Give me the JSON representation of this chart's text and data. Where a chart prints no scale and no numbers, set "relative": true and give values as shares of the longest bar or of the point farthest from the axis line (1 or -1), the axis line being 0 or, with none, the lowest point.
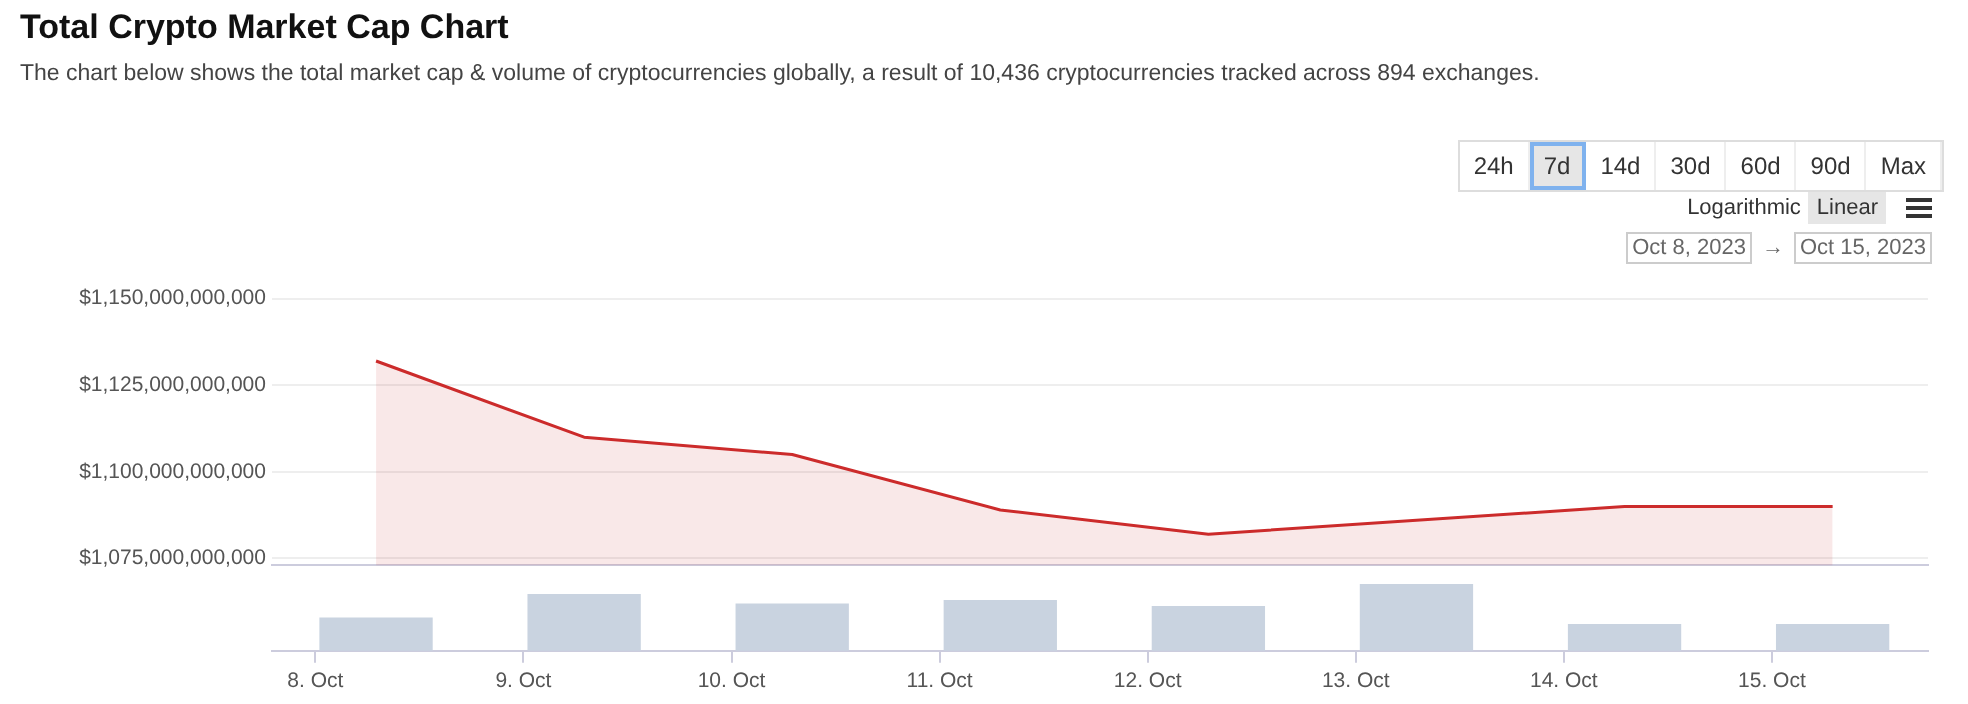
{
  "chart_data": [
    {
      "type": "area",
      "title": "Total Crypto Market Cap Chart",
      "subtitle": "The chart below shows the total market cap & volume of cryptocurrencies globally, a result of 10,436 cryptocurrencies tracked across 894 exchanges.",
      "annotations": [
        "24h",
        "7d",
        "14d",
        "30d",
        "60d",
        "90d",
        "Max",
        "Logarithmic",
        "Linear",
        "Oct 8, 2023",
        "→",
        "Oct 15, 2023"
      ],
      "x": [
        "2023-10-08T07:00",
        "2023-10-09T07:00",
        "2023-10-10T07:00",
        "2023-10-11T07:00",
        "2023-10-12T07:00",
        "2023-10-13T07:00",
        "2023-10-14T07:00",
        "2023-10-15T07:00"
      ],
      "series": [
        {
          "color": "#cc2b2b",
          "values": [
            1132000000000,
            1110000000000,
            1105000000000,
            1089000000000,
            1082000000000,
            1086000000000,
            1090000000000,
            1090000000000
          ]
        }
      ],
      "xlim": [
        "2023-10-07T19:00",
        "2023-10-15T18:00"
      ],
      "ylim": [
        1073000000000,
        1150000000000
      ],
      "yticks": [
        {
          "value": 1075000000000,
          "label": "$1,075,000,000,000"
        },
        {
          "value": 1100000000000,
          "label": "$1,100,000,000,000"
        },
        {
          "value": 1125000000000,
          "label": "$1,125,000,000,000"
        },
        {
          "value": 1150000000000,
          "label": "$1,150,000,000,000"
        }
      ],
      "tick_labels": "y",
      "grid": "y",
      "legend": false,
      "marker": "none"
    },
    {
      "type": "bar",
      "relative": true,
      "x": [
        "2023-10-08T07:00",
        "2023-10-09T07:00",
        "2023-10-10T07:00",
        "2023-10-11T07:00",
        "2023-10-12T07:00",
        "2023-10-13T07:00",
        "2023-10-14T07:00",
        "2023-10-15T07:00"
      ],
      "series": [
        {
          "color": "#c9d3e0",
          "values": [
            0.49,
            0.84,
            0.7,
            0.75,
            0.66,
            1,
            0.39,
            0.39
          ]
        }
      ],
      "xlim": [
        "2023-10-07T19:00",
        "2023-10-15T18:00"
      ],
      "xticks": [
        {
          "value": "2023-10-08",
          "label": "8. Oct"
        },
        {
          "value": "2023-10-09",
          "label": "9. Oct"
        },
        {
          "value": "2023-10-10",
          "label": "10. Oct"
        },
        {
          "value": "2023-10-11",
          "label": "11. Oct"
        },
        {
          "value": "2023-10-12",
          "label": "12. Oct"
        },
        {
          "value": "2023-10-13",
          "label": "13. Oct"
        },
        {
          "value": "2023-10-14",
          "label": "14. Oct"
        },
        {
          "value": "2023-10-15",
          "label": "15. Oct"
        }
      ],
      "tick_labels": "x",
      "legend": false
    }
  ]
}
